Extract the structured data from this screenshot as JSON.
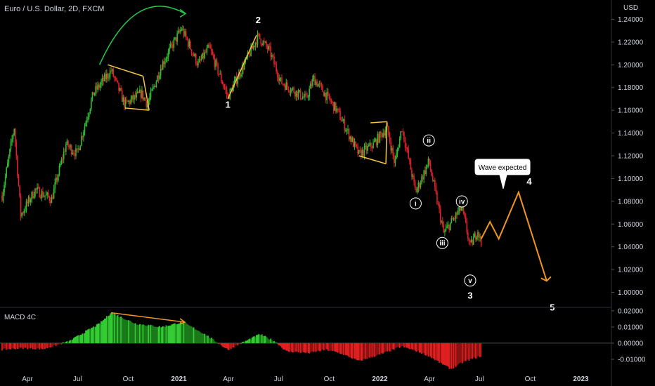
{
  "symbol_title": "Euro / U.S. Dollar, 2D, FXCM",
  "currency": "USD",
  "indicator_label": "MACD 4C",
  "colors": {
    "background": "#000000",
    "up": "#2ebd2e",
    "down": "#e0202a",
    "projection": "#f0961e",
    "triangle": "#f5c542",
    "wave_line": "#f5c542",
    "arc": "#22cc44",
    "macd_up": "#33cc33",
    "macd_down": "#cc1f1f",
    "axis_text": "#d1d4dc",
    "grid": "#1a1a1a"
  },
  "time_axis": {
    "labels": [
      "Apr",
      "Jul",
      "Oct",
      "2021",
      "Apr",
      "Jul",
      "Oct",
      "2022",
      "Apr",
      "Jul",
      "Oct",
      "2023"
    ],
    "dates": [
      "2020-04-01",
      "2020-07-01",
      "2020-10-01",
      "2021-01-01",
      "2021-04-01",
      "2021-07-01",
      "2021-10-01",
      "2022-01-01",
      "2022-04-01",
      "2022-07-01",
      "2022-10-01",
      "2023-01-01"
    ]
  },
  "chart_data": [
    {
      "type": "candlestick",
      "title": "Euro / U.S. Dollar, 2D, FXCM",
      "ylabel": "USD",
      "ylim": [
        0.988,
        1.252
      ],
      "y_ticks": [
        "1.24000",
        "1.22000",
        "1.20000",
        "1.18000",
        "1.16000",
        "1.14000",
        "1.12000",
        "1.10000",
        "1.08000",
        "1.06000",
        "1.04000",
        "1.02000",
        "1.00000"
      ],
      "price_path": [
        {
          "date": "2020-02-15",
          "close": 1.085
        },
        {
          "date": "2020-03-08",
          "close": 1.145
        },
        {
          "date": "2020-03-20",
          "close": 1.068
        },
        {
          "date": "2020-04-15",
          "close": 1.09
        },
        {
          "date": "2020-05-15",
          "close": 1.082
        },
        {
          "date": "2020-06-10",
          "close": 1.13
        },
        {
          "date": "2020-06-30",
          "close": 1.122
        },
        {
          "date": "2020-07-30",
          "close": 1.175
        },
        {
          "date": "2020-08-15",
          "close": 1.185
        },
        {
          "date": "2020-08-31",
          "close": 1.195
        },
        {
          "date": "2020-09-25",
          "close": 1.165
        },
        {
          "date": "2020-10-25",
          "close": 1.175
        },
        {
          "date": "2020-11-05",
          "close": 1.165
        },
        {
          "date": "2020-12-01",
          "close": 1.2
        },
        {
          "date": "2021-01-06",
          "close": 1.232
        },
        {
          "date": "2021-02-05",
          "close": 1.2
        },
        {
          "date": "2021-02-25",
          "close": 1.215
        },
        {
          "date": "2021-03-31",
          "close": 1.172
        },
        {
          "date": "2021-05-25",
          "close": 1.225
        },
        {
          "date": "2021-06-15",
          "close": 1.212
        },
        {
          "date": "2021-07-05",
          "close": 1.185
        },
        {
          "date": "2021-08-20",
          "close": 1.17
        },
        {
          "date": "2021-09-03",
          "close": 1.188
        },
        {
          "date": "2021-10-15",
          "close": 1.16
        },
        {
          "date": "2021-11-24",
          "close": 1.121
        },
        {
          "date": "2021-12-20",
          "close": 1.13
        },
        {
          "date": "2022-01-14",
          "close": 1.145
        },
        {
          "date": "2022-01-28",
          "close": 1.113
        },
        {
          "date": "2022-02-10",
          "close": 1.145
        },
        {
          "date": "2022-03-07",
          "close": 1.088
        },
        {
          "date": "2022-03-31",
          "close": 1.115
        },
        {
          "date": "2022-04-27",
          "close": 1.052
        },
        {
          "date": "2022-05-30",
          "close": 1.075
        },
        {
          "date": "2022-06-14",
          "close": 1.04
        },
        {
          "date": "2022-06-28",
          "close": 1.055
        },
        {
          "date": "2022-07-04",
          "close": 1.042
        }
      ],
      "projection_path": [
        {
          "date": "2022-07-04",
          "close": 1.047
        },
        {
          "date": "2022-07-20",
          "close": 1.062
        },
        {
          "date": "2022-08-05",
          "close": 1.047
        },
        {
          "date": "2022-09-10",
          "close": 1.088
        },
        {
          "date": "2022-10-31",
          "close": 1.01
        }
      ],
      "wave_labels": [
        {
          "label": "1",
          "date": "2021-03-31",
          "value": 1.172
        },
        {
          "label": "2",
          "date": "2021-05-25",
          "value": 1.228
        },
        {
          "label": "3",
          "date": "2022-06-14",
          "value": 1.04
        },
        {
          "label": "4",
          "date": "2022-09-10",
          "value": 1.088
        },
        {
          "label": "5",
          "date": "2022-10-31",
          "value": 1.01
        }
      ],
      "subwave_labels": [
        {
          "label": "i",
          "date": "2022-03-07",
          "value": 1.088
        },
        {
          "label": "ii",
          "date": "2022-03-31",
          "value": 1.115
        },
        {
          "label": "iii",
          "date": "2022-04-27",
          "value": 1.052
        },
        {
          "label": "iv",
          "date": "2022-05-30",
          "value": 1.075
        },
        {
          "label": "v",
          "date": "2022-06-14",
          "value": 1.04
        }
      ],
      "annotations": [
        {
          "text": "Wave expected",
          "date": "2022-08-22",
          "value": 1.088,
          "kind": "callout"
        }
      ],
      "drawings": [
        {
          "kind": "wave-line",
          "from": {
            "date": "2021-03-31",
            "value": 1.17
          },
          "to": {
            "date": "2021-05-22",
            "value": 1.226
          }
        },
        {
          "kind": "triangle",
          "points": [
            {
              "date": "2020-08-25",
              "value": 1.2
            },
            {
              "date": "2020-10-28",
              "value": 1.19
            },
            {
              "date": "2020-11-08",
              "value": 1.16
            },
            {
              "date": "2020-09-25",
              "value": 1.162
            }
          ]
        },
        {
          "kind": "triangle",
          "points": [
            {
              "date": "2021-12-15",
              "value": 1.149
            },
            {
              "date": "2022-01-14",
              "value": 1.15
            },
            {
              "date": "2022-01-12",
              "value": 1.113
            },
            {
              "date": "2021-11-24",
              "value": 1.12
            }
          ]
        },
        {
          "kind": "arc-arrow",
          "from": {
            "date": "2020-08-10",
            "value": 1.2
          },
          "to": {
            "date": "2021-01-12",
            "value": 1.245
          }
        }
      ]
    },
    {
      "type": "histogram",
      "title": "MACD 4C",
      "ylim": [
        -0.0178,
        0.0208
      ],
      "y_ticks": [
        "0.02000",
        "0.01000",
        "0.00000",
        "-0.01000"
      ],
      "series": [
        {
          "date": "2020-02-15",
          "value": -0.004
        },
        {
          "date": "2020-03-20",
          "value": -0.003
        },
        {
          "date": "2020-05-01",
          "value": -0.0035
        },
        {
          "date": "2020-06-15",
          "value": 0.001
        },
        {
          "date": "2020-07-20",
          "value": 0.008
        },
        {
          "date": "2020-08-10",
          "value": 0.012
        },
        {
          "date": "2020-08-31",
          "value": 0.0188
        },
        {
          "date": "2020-10-15",
          "value": 0.012
        },
        {
          "date": "2020-12-01",
          "value": 0.01
        },
        {
          "date": "2021-01-08",
          "value": 0.013
        },
        {
          "date": "2021-02-15",
          "value": 0.006
        },
        {
          "date": "2021-03-31",
          "value": -0.004
        },
        {
          "date": "2021-05-01",
          "value": 0.001
        },
        {
          "date": "2021-05-28",
          "value": 0.0055
        },
        {
          "date": "2021-06-25",
          "value": 0.001
        },
        {
          "date": "2021-07-15",
          "value": -0.005
        },
        {
          "date": "2021-08-25",
          "value": -0.006
        },
        {
          "date": "2021-09-25",
          "value": -0.004
        },
        {
          "date": "2021-10-20",
          "value": -0.006
        },
        {
          "date": "2021-11-24",
          "value": -0.011
        },
        {
          "date": "2022-01-01",
          "value": -0.007
        },
        {
          "date": "2022-02-10",
          "value": -0.002
        },
        {
          "date": "2022-03-10",
          "value": -0.005
        },
        {
          "date": "2022-04-01",
          "value": -0.008
        },
        {
          "date": "2022-05-10",
          "value": -0.016
        },
        {
          "date": "2022-06-05",
          "value": -0.011
        },
        {
          "date": "2022-07-04",
          "value": -0.008
        }
      ],
      "divergence_line": {
        "from": {
          "date": "2020-08-31",
          "value": 0.0188
        },
        "to": {
          "date": "2021-01-12",
          "value": 0.013
        }
      }
    }
  ]
}
